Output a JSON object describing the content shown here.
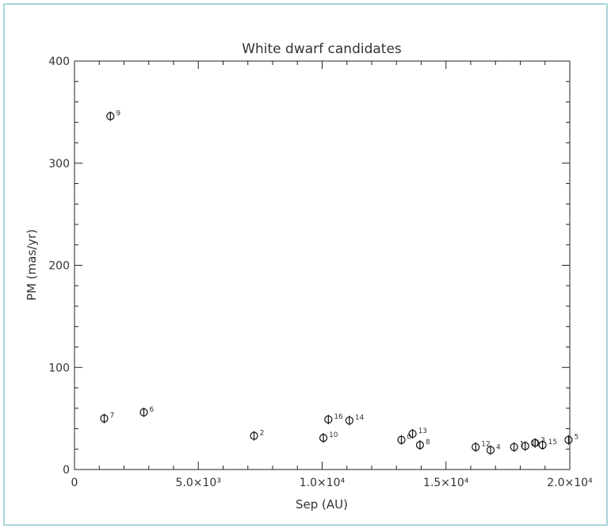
{
  "chart_data": {
    "type": "scatter",
    "title": "White dwarf candidates",
    "xlabel": "Sep (AU)",
    "ylabel": "PM (mas/yr)",
    "xlim": [
      0,
      20000
    ],
    "ylim": [
      0,
      400
    ],
    "x_ticks": [
      {
        "value": 0,
        "label": "0"
      },
      {
        "value": 5000,
        "label": "5.0×10³"
      },
      {
        "value": 10000,
        "label": "1.0×10⁴"
      },
      {
        "value": 15000,
        "label": "1.5×10⁴"
      },
      {
        "value": 20000,
        "label": "2.0×10⁴"
      }
    ],
    "y_ticks": [
      {
        "value": 0,
        "label": "0"
      },
      {
        "value": 100,
        "label": "100"
      },
      {
        "value": 200,
        "label": "200"
      },
      {
        "value": 300,
        "label": "300"
      },
      {
        "value": 400,
        "label": "400"
      }
    ],
    "grid": false,
    "points": [
      {
        "label": "9",
        "x": 1450,
        "y": 346
      },
      {
        "label": "7",
        "x": 1200,
        "y": 50
      },
      {
        "label": "6",
        "x": 2800,
        "y": 56
      },
      {
        "label": "2",
        "x": 7250,
        "y": 33
      },
      {
        "label": "16",
        "x": 10250,
        "y": 49
      },
      {
        "label": "14",
        "x": 11100,
        "y": 48
      },
      {
        "label": "10",
        "x": 10050,
        "y": 31
      },
      {
        "label": "0",
        "x": 13200,
        "y": 29
      },
      {
        "label": "13",
        "x": 13650,
        "y": 35
      },
      {
        "label": "8",
        "x": 13950,
        "y": 24
      },
      {
        "label": "12",
        "x": 16200,
        "y": 22
      },
      {
        "label": "4",
        "x": 16800,
        "y": 19
      },
      {
        "label": "1",
        "x": 17750,
        "y": 22
      },
      {
        "label": "11",
        "x": 18200,
        "y": 23
      },
      {
        "label": "3",
        "x": 18600,
        "y": 26
      },
      {
        "label": "15",
        "x": 18900,
        "y": 24
      },
      {
        "label": "5",
        "x": 19950,
        "y": 29
      }
    ]
  }
}
